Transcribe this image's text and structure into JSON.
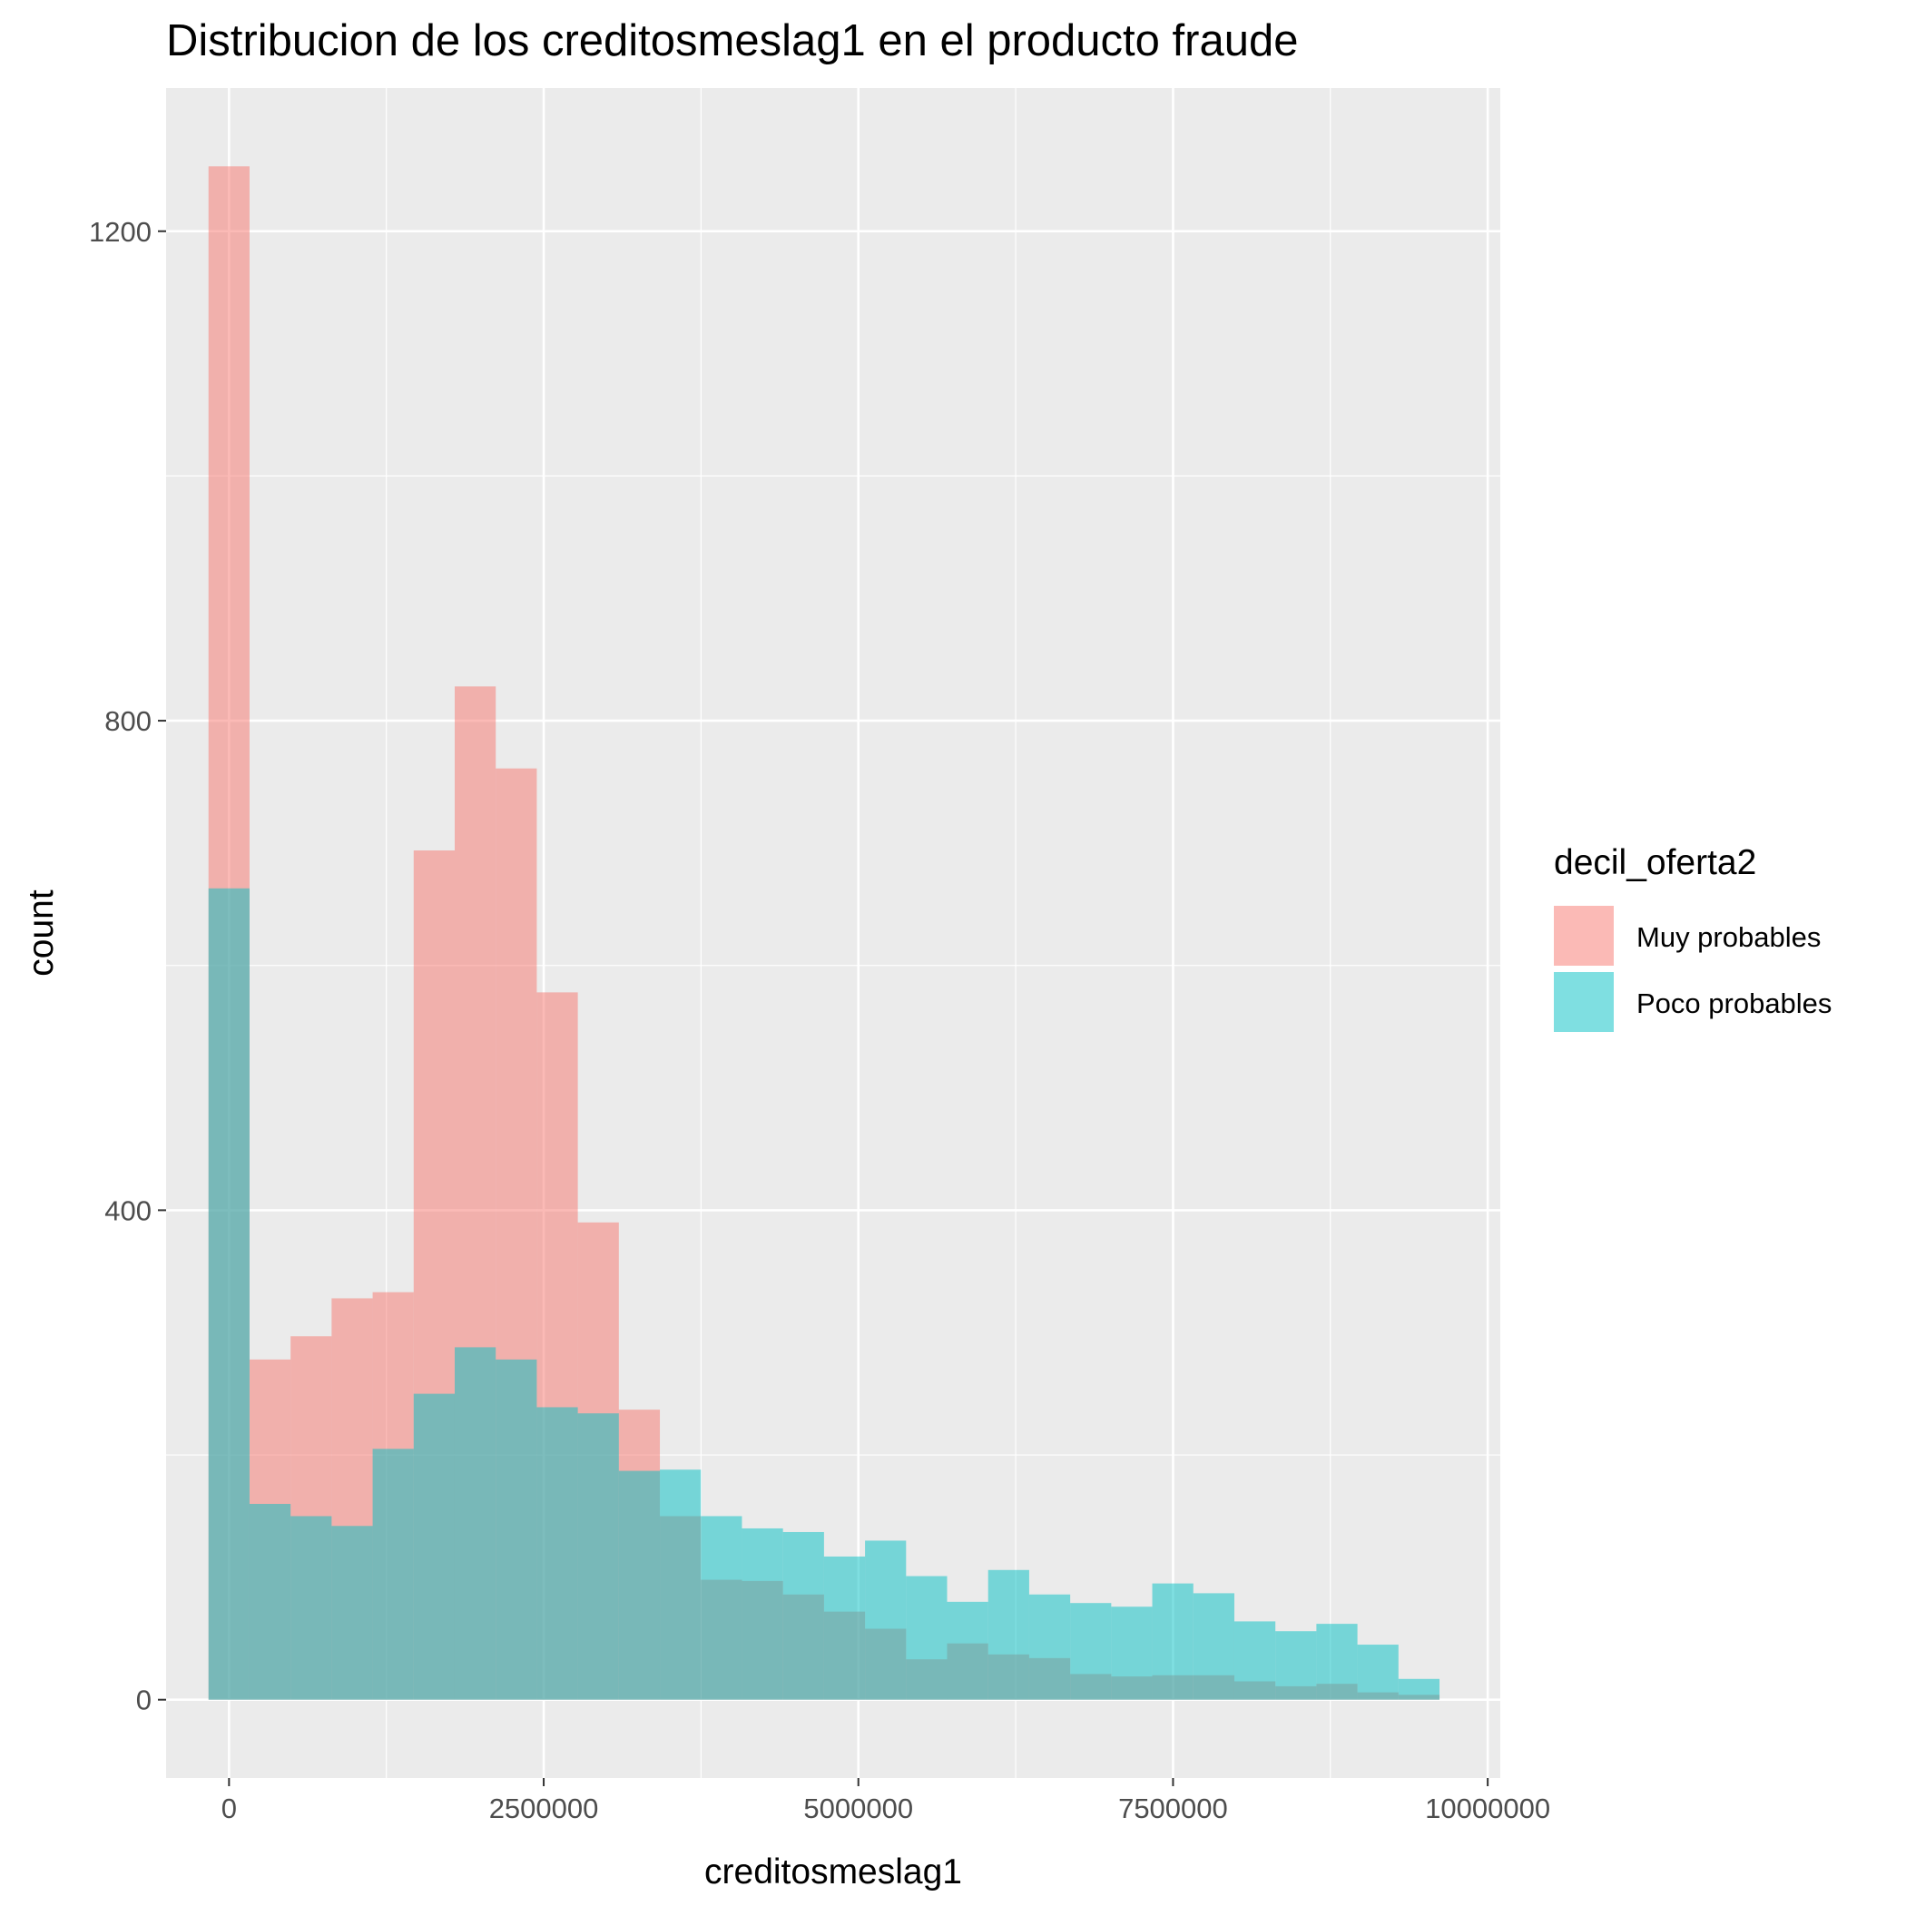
{
  "chart_data": {
    "type": "histogram",
    "title": "Distribucion de los  creditosmeslag1 en el producto fraude",
    "xlabel": "creditosmeslag1",
    "ylabel": "count",
    "xlim": [
      -500000,
      10100000
    ],
    "ylim": [
      -64,
      1317
    ],
    "x_ticks": [
      0,
      2500000,
      5000000,
      7500000,
      10000000
    ],
    "x_tick_labels": [
      "0",
      "2500000",
      "5000000",
      "7500000",
      "10000000"
    ],
    "y_ticks": [
      0,
      400,
      800,
      1200
    ],
    "y_tick_labels": [
      "0",
      "400",
      "800",
      "1200"
    ],
    "grid": true,
    "bins": 30,
    "bin_width": 326000,
    "bin_start": -163000,
    "legend": {
      "title": "decil_oferta2",
      "position": "right"
    },
    "series": [
      {
        "name": "Muy probables",
        "color": "#F8766D",
        "values": [
          1253,
          278,
          297,
          328,
          333,
          694,
          828,
          761,
          578,
          390,
          237,
          150,
          98,
          97,
          86,
          72,
          58,
          33,
          46,
          37,
          34,
          21,
          19,
          20,
          20,
          15,
          11,
          13,
          6,
          4
        ]
      },
      {
        "name": "Poco probables",
        "color": "#00BFC4",
        "values": [
          663,
          160,
          150,
          142,
          205,
          250,
          288,
          278,
          239,
          234,
          187,
          188,
          150,
          140,
          137,
          117,
          130,
          101,
          80,
          106,
          86,
          79,
          76,
          95,
          87,
          64,
          56,
          62,
          45,
          17
        ]
      }
    ]
  }
}
